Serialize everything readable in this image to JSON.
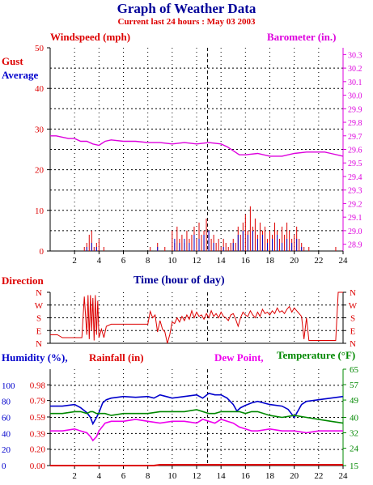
{
  "header": {
    "title": "Graph of Weather Data",
    "subtitle": "Current last 24 hours : May 03 2003"
  },
  "colors": {
    "wind": "#dd0000",
    "avg": "#0000cc",
    "baro": "#dd00dd",
    "hum": "#0000cc",
    "rain": "#dd0000",
    "dew": "#ee00ee",
    "temp": "#008800",
    "title": "#000099",
    "axis": "#000000",
    "time_label": "#000099"
  },
  "chart_data": [
    {
      "name": "wind-panel",
      "type": "line",
      "labels": {
        "left_top": "Windspeed (mph)",
        "right_top": "Barometer (in.)",
        "gust": "Gust",
        "average": "Average",
        "xlabel": "Time (hour of day)"
      },
      "xlim": [
        0,
        24
      ],
      "x_ticks": [
        2,
        4,
        6,
        8,
        10,
        12,
        14,
        16,
        18,
        20,
        22,
        24
      ],
      "ylim_left": [
        0,
        50
      ],
      "y_ticks_left": [
        0,
        10,
        20,
        30,
        40,
        50
      ],
      "ylim_right": [
        28.85,
        30.35
      ],
      "y_ticks_right": [
        28.9,
        29.0,
        29.1,
        29.2,
        29.3,
        29.4,
        29.5,
        29.6,
        29.7,
        29.8,
        29.9,
        30.0,
        30.1,
        30.2,
        30.3
      ],
      "grid": true,
      "series": [
        {
          "name": "Gust",
          "color": "#dd0000",
          "style": "spikes",
          "x": [
            2.8,
            3.0,
            3.2,
            3.4,
            3.6,
            3.8,
            4.0,
            4.4,
            8.2,
            8.8,
            9.4,
            10.0,
            10.2,
            10.4,
            10.6,
            10.8,
            11.0,
            11.2,
            11.4,
            11.6,
            11.8,
            12.0,
            12.2,
            12.4,
            12.6,
            12.8,
            13.0,
            13.2,
            13.4,
            13.6,
            13.8,
            14.0,
            14.2,
            14.4,
            14.6,
            14.8,
            15.0,
            15.2,
            15.4,
            15.6,
            15.8,
            16.0,
            16.2,
            16.4,
            16.6,
            16.8,
            17.0,
            17.2,
            17.4,
            17.6,
            17.8,
            18.0,
            18.2,
            18.4,
            18.6,
            18.8,
            19.0,
            19.2,
            19.4,
            19.6,
            19.8,
            20.0,
            20.2,
            20.4,
            20.6,
            20.8,
            21.2,
            23.4
          ],
          "y": [
            1,
            2,
            4,
            5,
            1,
            2,
            3,
            1,
            1,
            2,
            1,
            5,
            2,
            6,
            3,
            4,
            2,
            5,
            3,
            4,
            6,
            3,
            7,
            4,
            5,
            8,
            5,
            3,
            4,
            2,
            3,
            1,
            3,
            2,
            1,
            2,
            3,
            2,
            6,
            4,
            7,
            9,
            5,
            11,
            6,
            8,
            4,
            7,
            5,
            6,
            3,
            5,
            4,
            7,
            5,
            3,
            6,
            4,
            7,
            5,
            3,
            4,
            6,
            3,
            2,
            1,
            1,
            1
          ]
        },
        {
          "name": "Average",
          "color": "#0000cc",
          "style": "spikes",
          "x": [
            3.0,
            3.4,
            3.8,
            8.8,
            10.2,
            10.6,
            11.0,
            11.4,
            11.8,
            12.2,
            12.6,
            13.0,
            13.4,
            14.2,
            15.0,
            15.4,
            15.8,
            16.2,
            16.6,
            17.0,
            17.4,
            17.8,
            18.2,
            18.6,
            19.0,
            19.4,
            19.8,
            20.2,
            20.6
          ],
          "y": [
            1,
            2,
            1,
            1,
            3,
            2,
            3,
            2,
            4,
            3,
            4,
            5,
            2,
            1,
            2,
            4,
            5,
            4,
            5,
            3,
            4,
            2,
            3,
            4,
            2,
            3,
            2,
            3,
            1
          ]
        },
        {
          "name": "Barometer",
          "axis": "right",
          "color": "#dd00dd",
          "style": "line",
          "x": [
            0,
            0.5,
            1.5,
            2.0,
            2.5,
            3.0,
            3.5,
            4.0,
            4.5,
            5.0,
            6.0,
            7.0,
            8.0,
            9.0,
            10.0,
            11.0,
            12.0,
            13.0,
            14.0,
            14.5,
            15.0,
            15.5,
            16.0,
            17.0,
            18.0,
            19.0,
            20.0,
            21.0,
            22.0,
            22.5,
            23.0,
            24.0
          ],
          "y": [
            29.7,
            29.7,
            29.68,
            29.68,
            29.66,
            29.66,
            29.64,
            29.63,
            29.66,
            29.67,
            29.66,
            29.66,
            29.65,
            29.65,
            29.64,
            29.65,
            29.64,
            29.65,
            29.64,
            29.62,
            29.59,
            29.56,
            29.56,
            29.57,
            29.55,
            29.55,
            29.57,
            29.58,
            29.58,
            29.58,
            29.57,
            29.55
          ]
        }
      ]
    },
    {
      "name": "direction-panel",
      "type": "line",
      "labels": {
        "title": "Direction",
        "xlabel": "Time (hour of day)"
      },
      "xlim": [
        0,
        24
      ],
      "categories_left": [
        "N",
        "W",
        "S",
        "E",
        "N"
      ],
      "categories_right": [
        "N",
        "W",
        "S",
        "E",
        "N"
      ],
      "ylim": [
        0,
        360
      ],
      "grid": true,
      "series": [
        {
          "name": "Direction",
          "color": "#dd0000",
          "style": "line",
          "x": [
            0,
            0.6,
            1.0,
            1.6,
            2.2,
            2.6,
            2.8,
            3.0,
            3.1,
            3.2,
            3.3,
            3.4,
            3.5,
            3.6,
            3.7,
            3.8,
            3.9,
            4.0,
            4.2,
            4.4,
            4.6,
            5.0,
            6.0,
            7.0,
            8.0,
            8.2,
            8.4,
            8.6,
            8.8,
            9.0,
            9.2,
            9.4,
            9.6,
            9.8,
            10.0,
            10.2,
            10.4,
            10.6,
            10.8,
            11.0,
            11.2,
            11.4,
            11.6,
            11.8,
            12.0,
            12.2,
            12.4,
            12.6,
            12.8,
            13.0,
            13.2,
            13.4,
            13.6,
            13.8,
            14.0,
            14.2,
            14.4,
            14.6,
            14.8,
            15.0,
            15.2,
            15.4,
            15.6,
            15.8,
            16.0,
            16.2,
            16.4,
            16.6,
            16.8,
            17.0,
            17.2,
            17.4,
            17.6,
            17.8,
            18.0,
            18.2,
            18.4,
            18.6,
            18.8,
            19.0,
            19.2,
            19.4,
            19.6,
            19.8,
            20.0,
            20.2,
            20.4,
            20.6,
            20.8,
            21.0,
            21.2,
            21.4,
            22.0,
            23.0,
            23.4,
            23.6,
            24.0
          ],
          "y": [
            60,
            60,
            40,
            40,
            40,
            40,
            330,
            60,
            340,
            30,
            340,
            90,
            320,
            20,
            340,
            60,
            300,
            40,
            100,
            40,
            120,
            135,
            135,
            135,
            135,
            225,
            180,
            200,
            80,
            160,
            100,
            80,
            0,
            60,
            150,
            140,
            180,
            150,
            190,
            160,
            200,
            170,
            230,
            180,
            220,
            190,
            200,
            170,
            210,
            180,
            230,
            190,
            210,
            180,
            220,
            190,
            180,
            160,
            200,
            210,
            170,
            120,
            180,
            220,
            200,
            190,
            230,
            200,
            180,
            220,
            190,
            240,
            210,
            220,
            200,
            230,
            210,
            250,
            220,
            230,
            210,
            240,
            260,
            220,
            250,
            230,
            210,
            190,
            30,
            180,
            20,
            20,
            20,
            20,
            20,
            360,
            360
          ]
        }
      ]
    },
    {
      "name": "humidity-panel",
      "type": "line",
      "labels": {
        "humidity": "Humidity (%),",
        "rainfall": "Rainfall (in)",
        "dewpoint": "Dew Point,",
        "temperature": "Temperature (°F)",
        "xlabel": ""
      },
      "xlim": [
        0,
        24
      ],
      "x_ticks": [
        2,
        4,
        6,
        8,
        10,
        12,
        14,
        16,
        18,
        20,
        22,
        24
      ],
      "ylim_humidity": [
        0,
        120
      ],
      "y_ticks_humidity": [
        0,
        20,
        40,
        60,
        80,
        100
      ],
      "ylim_rain": [
        0,
        1.17
      ],
      "y_ticks_rain": [
        "0.00",
        "0.20",
        "0.39",
        "0.59",
        "0.79",
        "0.98"
      ],
      "ylim_temp": [
        15,
        65
      ],
      "y_ticks_temp": [
        15,
        24,
        32,
        40,
        49,
        57,
        65
      ],
      "grid": true,
      "series": [
        {
          "name": "Humidity",
          "axis": "humidity",
          "color": "#0000cc",
          "style": "line",
          "x": [
            0,
            1,
            2,
            2.5,
            3,
            3.3,
            3.5,
            3.8,
            4.0,
            4.3,
            4.6,
            5,
            6,
            7,
            8,
            8.5,
            9,
            9.5,
            10,
            11,
            12,
            12.5,
            13,
            13.5,
            14,
            14.5,
            15,
            15.3,
            15.6,
            16,
            16.5,
            17,
            18,
            19,
            19.5,
            20,
            20.3,
            20.6,
            21,
            22,
            23,
            24
          ],
          "y": [
            74,
            74,
            76,
            72,
            66,
            60,
            52,
            60,
            66,
            78,
            82,
            84,
            86,
            85,
            86,
            84,
            88,
            86,
            84,
            86,
            88,
            84,
            90,
            88,
            88,
            84,
            76,
            68,
            72,
            75,
            78,
            80,
            76,
            74,
            70,
            60,
            68,
            76,
            80,
            82,
            84,
            86
          ]
        },
        {
          "name": "Rainfall",
          "axis": "rain",
          "color": "#dd0000",
          "style": "line",
          "x": [
            0,
            8.5,
            9,
            24
          ],
          "y": [
            0.0,
            0.0,
            0.01,
            0.01
          ]
        },
        {
          "name": "Dew Point",
          "axis": "temp",
          "color": "#ee00ee",
          "style": "line",
          "x": [
            0,
            1,
            2,
            2.5,
            3,
            3.3,
            3.5,
            3.8,
            4.0,
            4.5,
            5,
            6,
            7,
            8,
            9,
            10,
            11,
            12,
            12.5,
            13,
            13.5,
            14,
            15,
            15.5,
            16,
            16.5,
            17,
            18,
            19,
            20,
            21,
            22,
            23,
            24
          ],
          "y": [
            33,
            33,
            34,
            33,
            32,
            30,
            28,
            30,
            33,
            37,
            38,
            38,
            39,
            38,
            37,
            38,
            38,
            37,
            39,
            38,
            37,
            39,
            37,
            35,
            34,
            33,
            33,
            34,
            33,
            33,
            32,
            33,
            33,
            33
          ]
        },
        {
          "name": "Temperature",
          "axis": "temp",
          "color": "#008800",
          "style": "line",
          "x": [
            0,
            1,
            2,
            2.5,
            3,
            3.3,
            3.5,
            3.8,
            4.0,
            4.5,
            5,
            6,
            7,
            8,
            9,
            10,
            11,
            12,
            13,
            13.5,
            14,
            15,
            15.5,
            16,
            16.5,
            17,
            18,
            19,
            20,
            21,
            22,
            23,
            24
          ],
          "y": [
            42,
            42,
            43,
            43,
            42,
            43,
            43,
            42,
            42,
            42,
            41,
            42,
            42,
            42,
            43,
            43,
            43,
            44,
            42,
            42,
            43,
            43,
            43,
            42,
            43,
            43,
            41,
            40,
            41,
            40,
            39,
            38,
            37
          ]
        }
      ]
    }
  ]
}
